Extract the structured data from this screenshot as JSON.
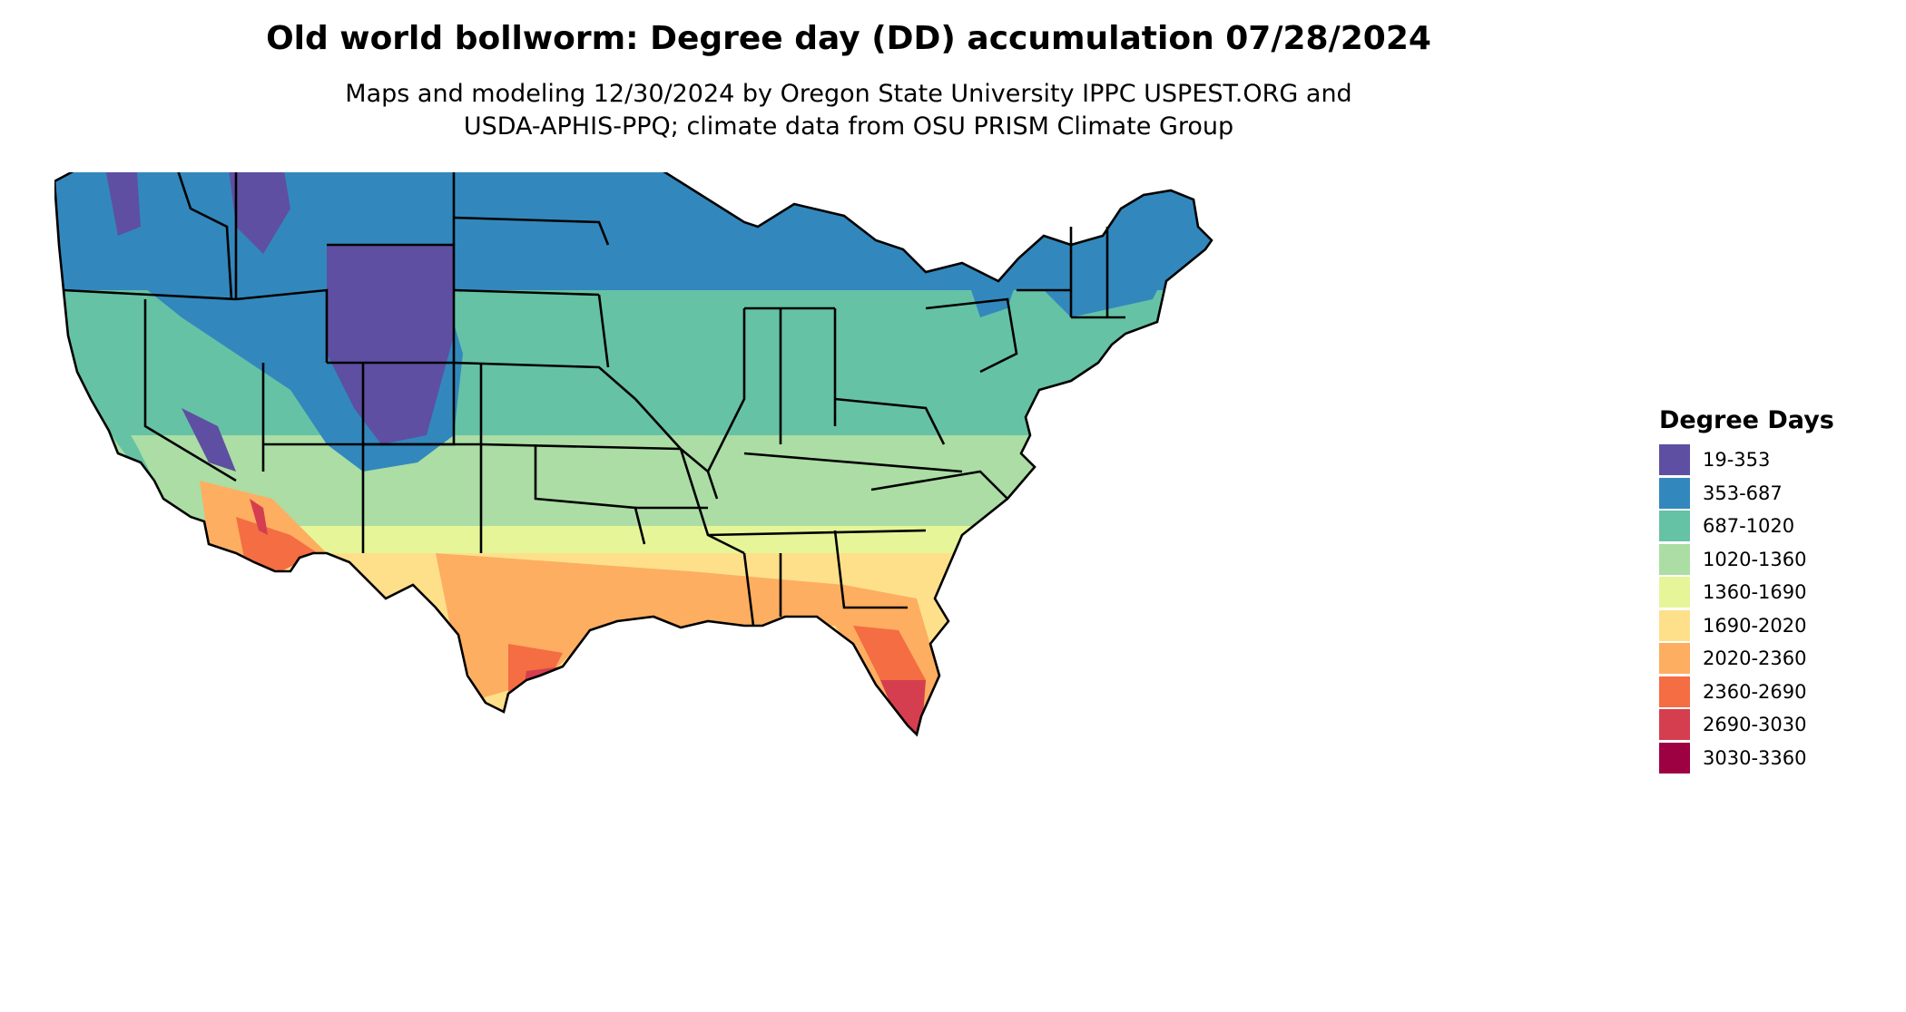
{
  "title": "Old world bollworm: Degree day (DD) accumulation 07/28/2024",
  "subtitle_line1": "Maps and modeling 12/30/2024 by Oregon State University IPPC USPEST.ORG and",
  "subtitle_line2": "USDA-APHIS-PPQ; climate data from OSU PRISM Climate Group",
  "legend": {
    "title": "Degree Days",
    "items": [
      {
        "label": "19-353",
        "color": "#5e4fa2"
      },
      {
        "label": "353-687",
        "color": "#3288bd"
      },
      {
        "label": "687-1020",
        "color": "#66c2a5"
      },
      {
        "label": "1020-1360",
        "color": "#abdda4"
      },
      {
        "label": "1360-1690",
        "color": "#e6f598"
      },
      {
        "label": "1690-2020",
        "color": "#fee08b"
      },
      {
        "label": "2020-2360",
        "color": "#fdae61"
      },
      {
        "label": "2360-2690",
        "color": "#f46d43"
      },
      {
        "label": "2690-3030",
        "color": "#d53e4f"
      },
      {
        "label": "3030-3360",
        "color": "#9e0142"
      }
    ]
  }
}
